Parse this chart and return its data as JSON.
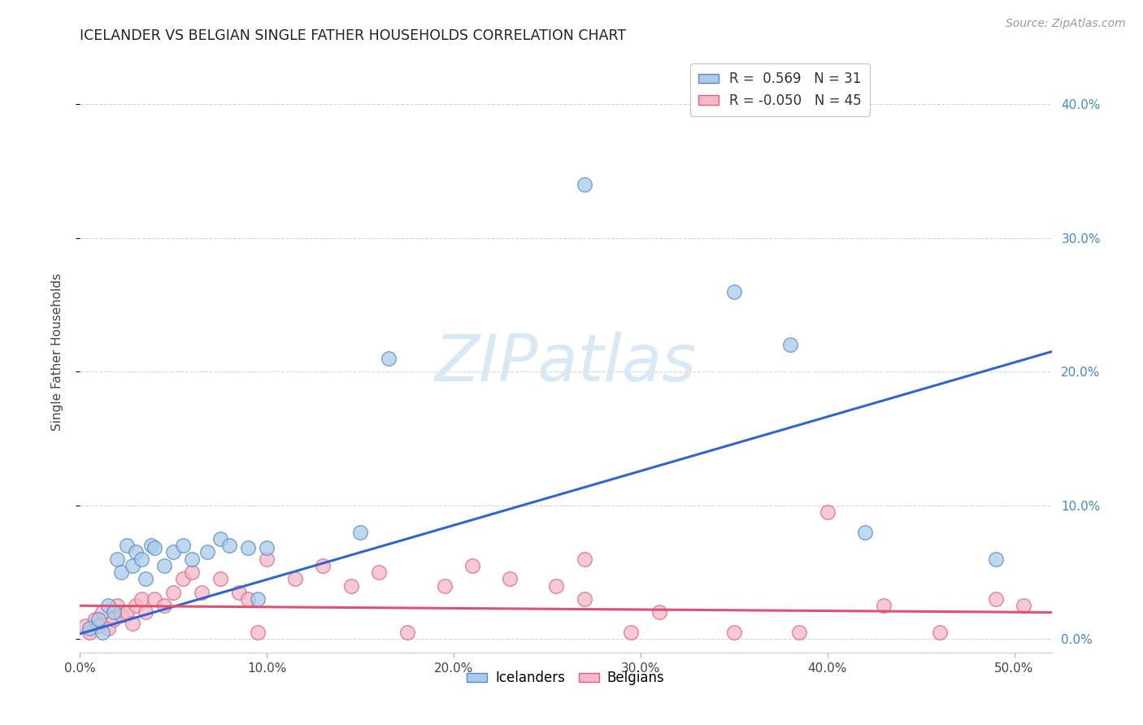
{
  "title": "ICELANDER VS BELGIAN SINGLE FATHER HOUSEHOLDS CORRELATION CHART",
  "source": "Source: ZipAtlas.com",
  "ylabel": "Single Father Households",
  "xlim": [
    0.0,
    0.52
  ],
  "ylim": [
    -0.01,
    0.44
  ],
  "xticks": [
    0.0,
    0.1,
    0.2,
    0.3,
    0.4,
    0.5
  ],
  "yticks_right": [
    0.0,
    0.1,
    0.2,
    0.3,
    0.4
  ],
  "r_icelander": 0.569,
  "n_icelander": 31,
  "r_belgian": -0.05,
  "n_belgian": 45,
  "blue_fill": "#aacce8",
  "blue_edge": "#5588cc",
  "pink_fill": "#f5b8c8",
  "pink_edge": "#e06080",
  "blue_line": "#3366cc",
  "pink_line": "#e05070",
  "watermark_color": "#d8e8f5",
  "icelanders_x": [
    0.005,
    0.01,
    0.012,
    0.015,
    0.018,
    0.02,
    0.022,
    0.025,
    0.028,
    0.03,
    0.033,
    0.035,
    0.038,
    0.04,
    0.045,
    0.05,
    0.055,
    0.06,
    0.068,
    0.075,
    0.08,
    0.09,
    0.095,
    0.1,
    0.15,
    0.165,
    0.27,
    0.35,
    0.38,
    0.42,
    0.49
  ],
  "icelanders_y": [
    0.008,
    0.015,
    0.005,
    0.025,
    0.02,
    0.06,
    0.05,
    0.07,
    0.055,
    0.065,
    0.06,
    0.045,
    0.07,
    0.068,
    0.055,
    0.065,
    0.07,
    0.06,
    0.065,
    0.075,
    0.07,
    0.068,
    0.03,
    0.068,
    0.08,
    0.21,
    0.34,
    0.26,
    0.22,
    0.08,
    0.06
  ],
  "belgians_x": [
    0.003,
    0.005,
    0.008,
    0.01,
    0.012,
    0.015,
    0.018,
    0.02,
    0.022,
    0.025,
    0.028,
    0.03,
    0.033,
    0.035,
    0.04,
    0.045,
    0.05,
    0.055,
    0.06,
    0.065,
    0.075,
    0.085,
    0.09,
    0.095,
    0.1,
    0.115,
    0.13,
    0.145,
    0.16,
    0.175,
    0.195,
    0.21,
    0.23,
    0.255,
    0.27,
    0.295,
    0.27,
    0.31,
    0.35,
    0.385,
    0.4,
    0.43,
    0.46,
    0.49,
    0.505
  ],
  "belgians_y": [
    0.01,
    0.005,
    0.015,
    0.01,
    0.02,
    0.008,
    0.015,
    0.025,
    0.018,
    0.02,
    0.012,
    0.025,
    0.03,
    0.02,
    0.03,
    0.025,
    0.035,
    0.045,
    0.05,
    0.035,
    0.045,
    0.035,
    0.03,
    0.005,
    0.06,
    0.045,
    0.055,
    0.04,
    0.05,
    0.005,
    0.04,
    0.055,
    0.045,
    0.04,
    0.03,
    0.005,
    0.06,
    0.02,
    0.005,
    0.005,
    0.095,
    0.025,
    0.005,
    0.03,
    0.025
  ],
  "ice_line_x": [
    0.0,
    0.52
  ],
  "ice_line_y": [
    0.004,
    0.215
  ],
  "bel_line_x": [
    0.0,
    0.52
  ],
  "bel_line_y": [
    0.025,
    0.02
  ]
}
